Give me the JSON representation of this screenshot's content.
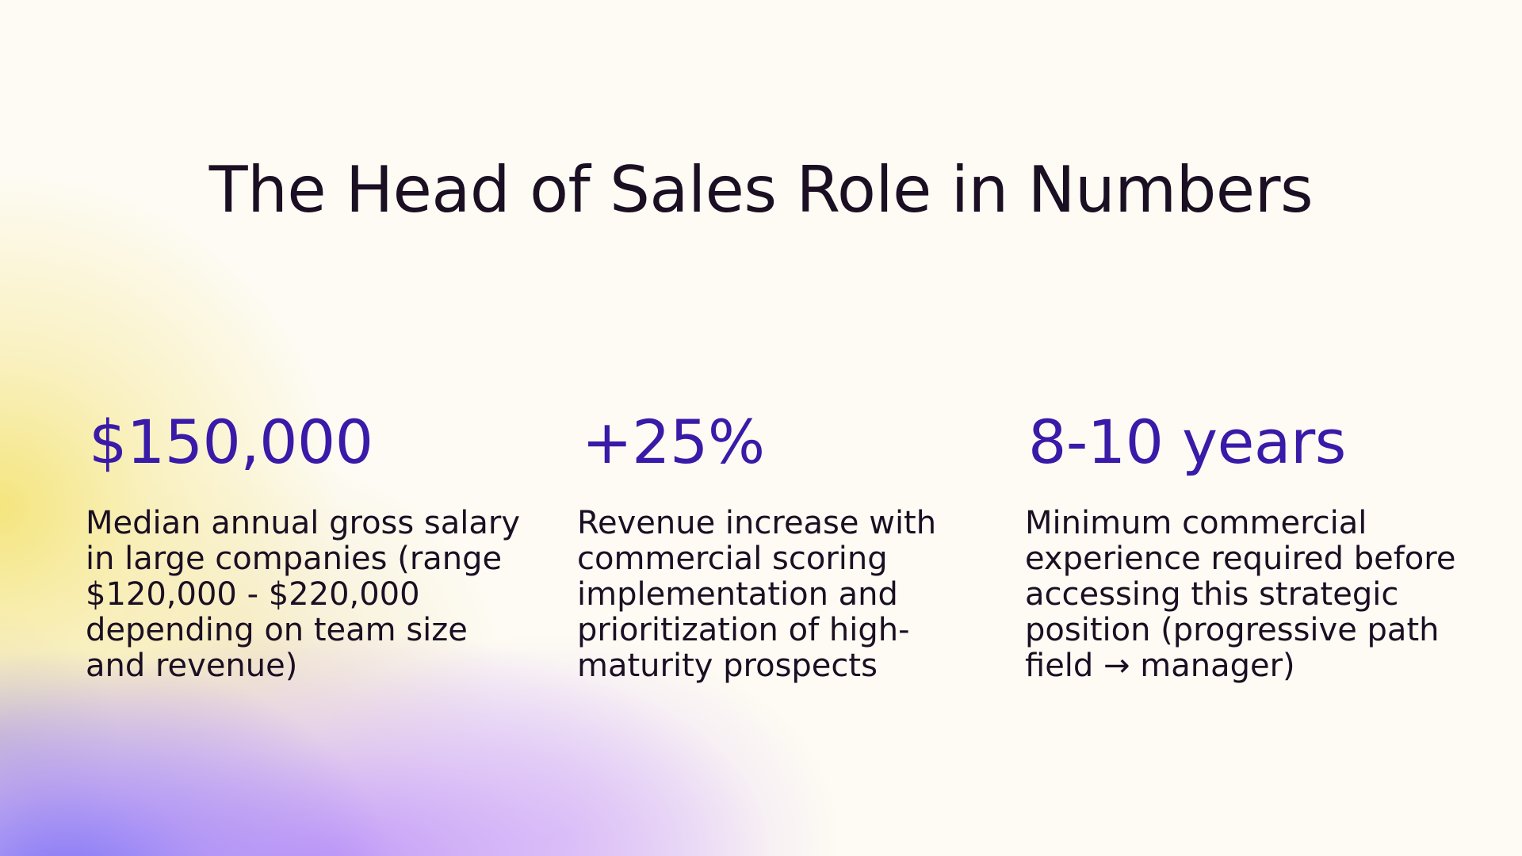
{
  "slide": {
    "title": "The Head of Sales Role in Numbers",
    "colors": {
      "background": "#fdfbf3",
      "text": "#1b0f23",
      "accent": "#3a1aa8"
    }
  },
  "stats": [
    {
      "value": "$150,000",
      "description": "Median annual gross salary in large companies (range $120,000 - $220,000 depending on team size and revenue)"
    },
    {
      "value": "+25%",
      "description": "Revenue increase with commercial scoring implementation and prioritization of high-maturity prospects"
    },
    {
      "value": "8-10 years",
      "description": "Minimum commercial experience required before accessing this strategic position (progressive path field → manager)"
    }
  ]
}
